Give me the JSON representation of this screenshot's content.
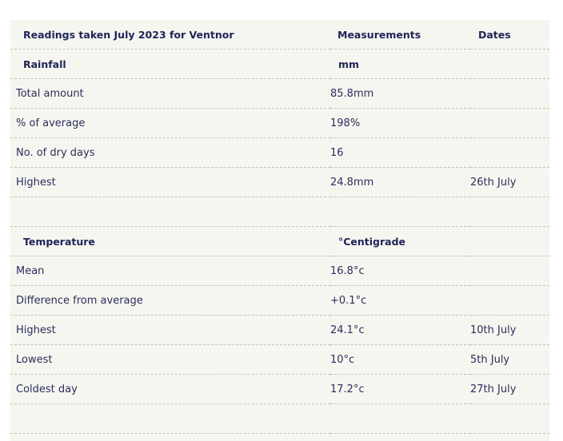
{
  "header": {
    "title": "Readings taken July 2023 for Ventnor",
    "measurements": "Measurements",
    "dates": "Dates"
  },
  "rainfall": {
    "section": "Rainfall",
    "unit": "mm",
    "rows": [
      {
        "label": "Total amount",
        "value": "85.8mm",
        "date": ""
      },
      {
        "label": "% of average",
        "value": "198%",
        "date": ""
      },
      {
        "label": "No. of dry days",
        "value": "16",
        "date": ""
      },
      {
        "label": "Highest",
        "value": "24.8mm",
        "date": "26th July"
      }
    ]
  },
  "temperature": {
    "section": "Temperature",
    "unit": "°Centigrade",
    "rows": [
      {
        "label": "Mean",
        "value": "16.8°c",
        "date": ""
      },
      {
        "label": "Difference from average",
        "value": "+0.1°c",
        "date": ""
      },
      {
        "label": "Highest",
        "value": "24.1°c",
        "date": "10th July"
      },
      {
        "label": "Lowest",
        "value": "10°c",
        "date": "5th July"
      },
      {
        "label": "Coldest day",
        "value": "17.2°c",
        "date": "27th July"
      }
    ]
  },
  "colors": {
    "panel_bg": "#f6f6f0",
    "text": "#2a2e5c",
    "divider": "#c2c6b4"
  }
}
